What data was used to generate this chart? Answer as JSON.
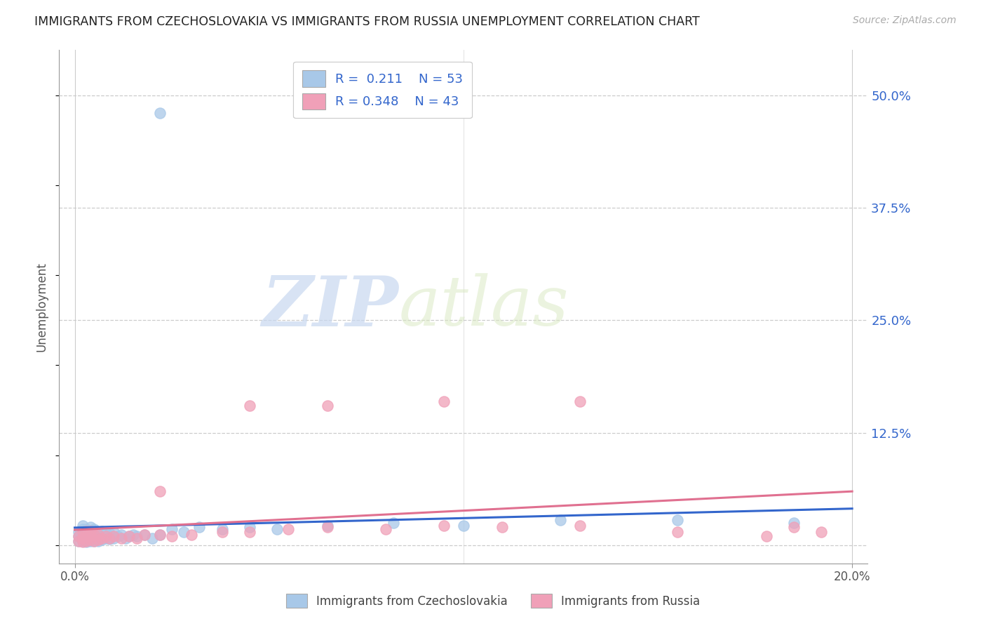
{
  "title": "IMMIGRANTS FROM CZECHOSLOVAKIA VS IMMIGRANTS FROM RUSSIA UNEMPLOYMENT CORRELATION CHART",
  "source": "Source: ZipAtlas.com",
  "ylabel": "Unemployment",
  "y_ticks": [
    0.0,
    0.125,
    0.25,
    0.375,
    0.5
  ],
  "y_tick_labels": [
    "",
    "12.5%",
    "25.0%",
    "37.5%",
    "50.0%"
  ],
  "x_lim": [
    0.0,
    0.2
  ],
  "y_lim": [
    -0.02,
    0.55
  ],
  "legend_entries": [
    {
      "label": "Immigrants from Czechoslovakia",
      "color": "#a8c8e8",
      "R": "0.211",
      "N": "53"
    },
    {
      "label": "Immigrants from Russia",
      "color": "#f0a0b8",
      "R": "0.348",
      "N": "43"
    }
  ],
  "legend_R_color": "#3366cc",
  "background_color": "#ffffff",
  "grid_color": "#cccccc",
  "czecho_color": "#a8c8e8",
  "russia_color": "#f0a0b8",
  "czecho_line_color": "#3366cc",
  "russia_line_color": "#e07090",
  "watermark_zip": "ZIP",
  "watermark_atlas": "atlas",
  "czecho_x": [
    0.001,
    0.001,
    0.001,
    0.002,
    0.002,
    0.002,
    0.002,
    0.002,
    0.003,
    0.003,
    0.003,
    0.003,
    0.004,
    0.004,
    0.004,
    0.004,
    0.005,
    0.005,
    0.005,
    0.005,
    0.006,
    0.006,
    0.007,
    0.007,
    0.007,
    0.008,
    0.008,
    0.009,
    0.009,
    0.01,
    0.01,
    0.011,
    0.012,
    0.013,
    0.014,
    0.015,
    0.016,
    0.018,
    0.02,
    0.022,
    0.025,
    0.028,
    0.032,
    0.038,
    0.045,
    0.052,
    0.065,
    0.082,
    0.1,
    0.125,
    0.155,
    0.185,
    0.022
  ],
  "czecho_y": [
    0.005,
    0.01,
    0.015,
    0.005,
    0.008,
    0.012,
    0.018,
    0.022,
    0.004,
    0.008,
    0.012,
    0.018,
    0.005,
    0.01,
    0.015,
    0.02,
    0.005,
    0.008,
    0.012,
    0.018,
    0.005,
    0.01,
    0.006,
    0.01,
    0.016,
    0.008,
    0.014,
    0.007,
    0.013,
    0.008,
    0.015,
    0.01,
    0.012,
    0.008,
    0.01,
    0.012,
    0.01,
    0.012,
    0.008,
    0.012,
    0.018,
    0.015,
    0.02,
    0.018,
    0.02,
    0.018,
    0.022,
    0.025,
    0.022,
    0.028,
    0.028,
    0.025,
    0.48
  ],
  "russia_x": [
    0.001,
    0.001,
    0.002,
    0.002,
    0.002,
    0.003,
    0.003,
    0.003,
    0.004,
    0.004,
    0.004,
    0.005,
    0.005,
    0.006,
    0.006,
    0.007,
    0.008,
    0.009,
    0.01,
    0.012,
    0.014,
    0.016,
    0.018,
    0.022,
    0.025,
    0.03,
    0.038,
    0.045,
    0.055,
    0.065,
    0.08,
    0.095,
    0.11,
    0.13,
    0.155,
    0.178,
    0.192,
    0.185,
    0.095,
    0.13,
    0.065,
    0.045,
    0.022
  ],
  "russia_y": [
    0.005,
    0.01,
    0.004,
    0.008,
    0.014,
    0.005,
    0.01,
    0.016,
    0.006,
    0.01,
    0.016,
    0.005,
    0.012,
    0.006,
    0.012,
    0.008,
    0.01,
    0.008,
    0.01,
    0.008,
    0.01,
    0.008,
    0.012,
    0.012,
    0.01,
    0.012,
    0.015,
    0.015,
    0.018,
    0.02,
    0.018,
    0.022,
    0.02,
    0.022,
    0.015,
    0.01,
    0.015,
    0.02,
    0.16,
    0.16,
    0.155,
    0.155,
    0.06
  ]
}
